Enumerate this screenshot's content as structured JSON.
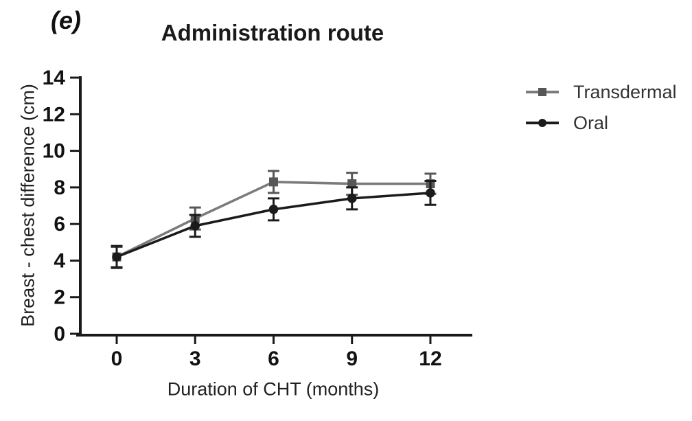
{
  "figure_label": "(e)",
  "chart_data": {
    "type": "line",
    "title": "Administration route",
    "xlabel": "Duration of CHT (months)",
    "ylabel": "Breast - chest difference (cm)",
    "x": [
      0,
      3,
      6,
      9,
      12
    ],
    "x_tick_labels": [
      "0",
      "3",
      "6",
      "9",
      "12"
    ],
    "y_ticks": [
      0,
      2,
      4,
      6,
      8,
      10,
      12,
      14
    ],
    "ylim": [
      0,
      14
    ],
    "grid": false,
    "legend_position": "right of plot, top",
    "axis_color": "#1a1a1a",
    "series": [
      {
        "name": "Transdermal",
        "marker": "square",
        "line_color": "#7b7b7b",
        "marker_color": "#575757",
        "values": [
          4.2,
          6.3,
          8.3,
          8.2,
          8.2
        ],
        "errors": [
          0.55,
          0.6,
          0.6,
          0.6,
          0.55
        ]
      },
      {
        "name": "Oral",
        "marker": "circle",
        "line_color": "#1b1b1b",
        "marker_color": "#1b1b1b",
        "values": [
          4.2,
          5.9,
          6.8,
          7.4,
          7.7
        ],
        "errors": [
          0.6,
          0.6,
          0.6,
          0.6,
          0.65
        ]
      }
    ]
  }
}
